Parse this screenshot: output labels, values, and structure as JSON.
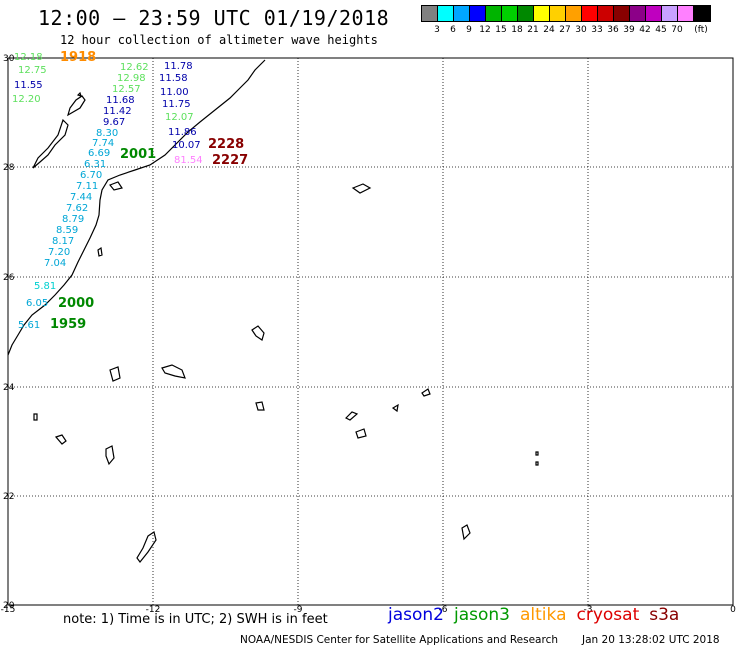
{
  "header": {
    "title": "12:00 – 23:59 UTC 01/19/2018",
    "subtitle": "12 hour collection of altimeter wave heights"
  },
  "legend": {
    "colors": [
      "#808080",
      "#00ffff",
      "#00a6ff",
      "#0000ff",
      "#00b400",
      "#00d000",
      "#008800",
      "#ffff00",
      "#ffd000",
      "#ffa000",
      "#ff0000",
      "#cc0000",
      "#880000",
      "#8c0088",
      "#bf00bf",
      "#c8a0ff",
      "#ff80ff",
      "#000000"
    ],
    "labels": [
      "3",
      "6",
      "9",
      "12",
      "15",
      "18",
      "21",
      "24",
      "27",
      "30",
      "33",
      "36",
      "39",
      "42",
      "45",
      "70",
      "(ft)"
    ]
  },
  "axes": {
    "lon_ticks": [
      "-15",
      "-12",
      "-9",
      "-6",
      "-3",
      "0"
    ],
    "lat_ticks": [
      "30",
      "28",
      "26",
      "24",
      "22",
      "20"
    ]
  },
  "track_labels": [
    {
      "text": "12.18",
      "color": "#5de05d"
    },
    {
      "text": "12.75",
      "color": "#5de05d"
    },
    {
      "text": "11.55",
      "color": "#0000aa"
    },
    {
      "text": "12.20",
      "color": "#5de05d"
    },
    {
      "text": "12.62",
      "color": "#5de05d"
    },
    {
      "text": "12.98",
      "color": "#5de05d"
    },
    {
      "text": "12.57",
      "color": "#5de05d"
    },
    {
      "text": "11.68",
      "color": "#0000aa"
    },
    {
      "text": "11.42",
      "color": "#0000aa"
    },
    {
      "text": "9.67",
      "color": "#0000aa"
    },
    {
      "text": "8.30",
      "color": "#00a6d6"
    },
    {
      "text": "7.74",
      "color": "#00a6d6"
    },
    {
      "text": "6.69",
      "color": "#00a6d6"
    },
    {
      "text": "6.31",
      "color": "#00a6d6"
    },
    {
      "text": "6.70",
      "color": "#00a6d6"
    },
    {
      "text": "7.11",
      "color": "#00a6d6"
    },
    {
      "text": "7.44",
      "color": "#00a6d6"
    },
    {
      "text": "7.62",
      "color": "#00a6d6"
    },
    {
      "text": "8.79",
      "color": "#00a6d6"
    },
    {
      "text": "8.59",
      "color": "#00a6d6"
    },
    {
      "text": "8.17",
      "color": "#00a6d6"
    },
    {
      "text": "7.20",
      "color": "#00a6d6"
    },
    {
      "text": "7.04",
      "color": "#00a6d6"
    },
    {
      "text": "5.81",
      "color": "#00d0d0"
    },
    {
      "text": "6.05",
      "color": "#00a6d6"
    },
    {
      "text": "5.61",
      "color": "#00a6d6"
    },
    {
      "text": "11.78",
      "color": "#0000aa"
    },
    {
      "text": "11.58",
      "color": "#0000aa"
    },
    {
      "text": "11.00",
      "color": "#0000aa"
    },
    {
      "text": "11.75",
      "color": "#0000aa"
    },
    {
      "text": "12.07",
      "color": "#5de05d"
    },
    {
      "text": "11.86",
      "color": "#0000aa"
    },
    {
      "text": "10.07",
      "color": "#0000aa"
    },
    {
      "text": "81.54",
      "color": "#ff80ff"
    }
  ],
  "time_labels": [
    {
      "text": "1918",
      "color": "#ff8c00"
    },
    {
      "text": "2001",
      "color": "#008800"
    },
    {
      "text": "2228",
      "color": "#880000"
    },
    {
      "text": "2227",
      "color": "#880000"
    },
    {
      "text": "2000",
      "color": "#008800"
    },
    {
      "text": "1959",
      "color": "#008800"
    }
  ],
  "footer": {
    "note": "note: 1) Time is in UTC; 2) SWH is in feet",
    "satellites": [
      {
        "name": "jason2",
        "color": "#0000dd"
      },
      {
        "name": "jason3",
        "color": "#009900"
      },
      {
        "name": "altika",
        "color": "#ff9900"
      },
      {
        "name": "cryosat",
        "color": "#dd0000"
      },
      {
        "name": "s3a",
        "color": "#880000"
      }
    ],
    "credit": "NOAA/NESDIS Center for Satellite Applications and Research",
    "timestamp": "Jan 20 13:28:02 UTC 2018"
  }
}
